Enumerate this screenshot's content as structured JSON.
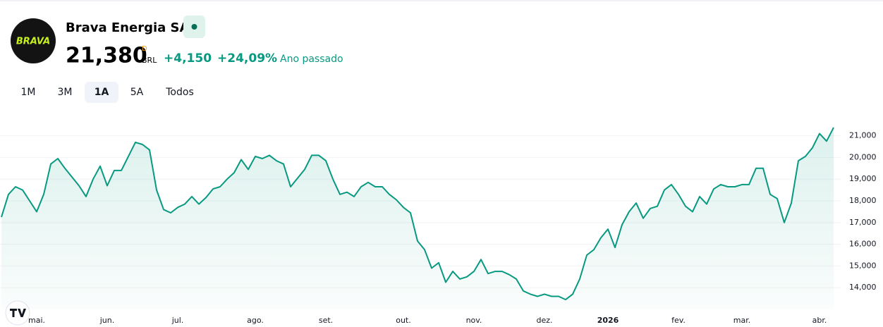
{
  "header": {
    "logo": "BRAVA",
    "name": "Brava Energia SA",
    "price": "21,380",
    "price_flag": "D",
    "currency": "BRL",
    "change": "+4,150",
    "change_percent": "+24,09%",
    "period": "Ano passado"
  },
  "ranges": [
    {
      "label": "1M",
      "selected": false
    },
    {
      "label": "3M",
      "selected": false
    },
    {
      "label": "1A",
      "selected": true
    },
    {
      "label": "5A",
      "selected": false
    },
    {
      "label": "Todos",
      "selected": false
    }
  ],
  "chart_data": {
    "type": "area",
    "color": "#089981",
    "categories": [
      null,
      null,
      null,
      null,
      null,
      "mai.",
      null,
      null,
      null,
      null,
      null,
      null,
      null,
      null,
      null,
      "jun.",
      null,
      null,
      null,
      null,
      null,
      null,
      null,
      null,
      null,
      "jul.",
      null,
      null,
      null,
      null,
      null,
      null,
      null,
      null,
      null,
      null,
      "ago.",
      null,
      null,
      null,
      null,
      null,
      null,
      null,
      null,
      null,
      "set.",
      null,
      null,
      null,
      null,
      null,
      null,
      null,
      null,
      null,
      null,
      "out.",
      null,
      null,
      null,
      null,
      null,
      null,
      null,
      null,
      null,
      "nov.",
      null,
      null,
      null,
      null,
      null,
      null,
      null,
      null,
      null,
      "dez.",
      null,
      null,
      null,
      null,
      null,
      null,
      null,
      null,
      "2026",
      null,
      null,
      null,
      null,
      null,
      null,
      null,
      null,
      null,
      "fev.",
      null,
      null,
      null,
      null,
      null,
      null,
      null,
      null,
      "mar.",
      null,
      null,
      null,
      null,
      null,
      null,
      null,
      null,
      null,
      null,
      "abr.",
      null,
      null
    ],
    "values": [
      17250,
      18300,
      18650,
      18500,
      18000,
      17500,
      18300,
      19700,
      19950,
      19500,
      19100,
      18700,
      18200,
      19000,
      19600,
      18700,
      19400,
      19400,
      20050,
      20700,
      20600,
      20350,
      18500,
      17600,
      17450,
      17700,
      17850,
      18200,
      17850,
      18150,
      18550,
      18650,
      19000,
      19300,
      19900,
      19450,
      20050,
      19950,
      20100,
      19850,
      19700,
      18650,
      19050,
      19450,
      20100,
      20100,
      19850,
      19000,
      18300,
      18400,
      18200,
      18650,
      18850,
      18650,
      18650,
      18300,
      18050,
      17700,
      17450,
      16150,
      15750,
      14900,
      15150,
      14250,
      14750,
      14400,
      14500,
      14750,
      15300,
      14650,
      14750,
      14750,
      14600,
      14400,
      13850,
      13700,
      13600,
      13700,
      13600,
      13600,
      13450,
      13700,
      14400,
      15500,
      15750,
      16300,
      16700,
      15850,
      16900,
      17500,
      17900,
      17200,
      17650,
      17750,
      18500,
      18750,
      18300,
      17750,
      17500,
      18200,
      17850,
      18550,
      18750,
      18650,
      18650,
      18750,
      18750,
      19500,
      19500,
      18300,
      18100,
      17000,
      17900,
      19850,
      20050,
      20450,
      21100,
      20750,
      21380
    ],
    "ylim": [
      13000,
      21800
    ],
    "yticks": [
      {
        "value": 14000,
        "label": "14,000"
      },
      {
        "value": 15000,
        "label": "15,000"
      },
      {
        "value": 16000,
        "label": "16,000"
      },
      {
        "value": 17000,
        "label": "17,000"
      },
      {
        "value": 18000,
        "label": "18,000"
      },
      {
        "value": 19000,
        "label": "19,000"
      },
      {
        "value": 20000,
        "label": "20,000"
      },
      {
        "value": 21000,
        "label": "21,000"
      }
    ],
    "grid": true
  }
}
